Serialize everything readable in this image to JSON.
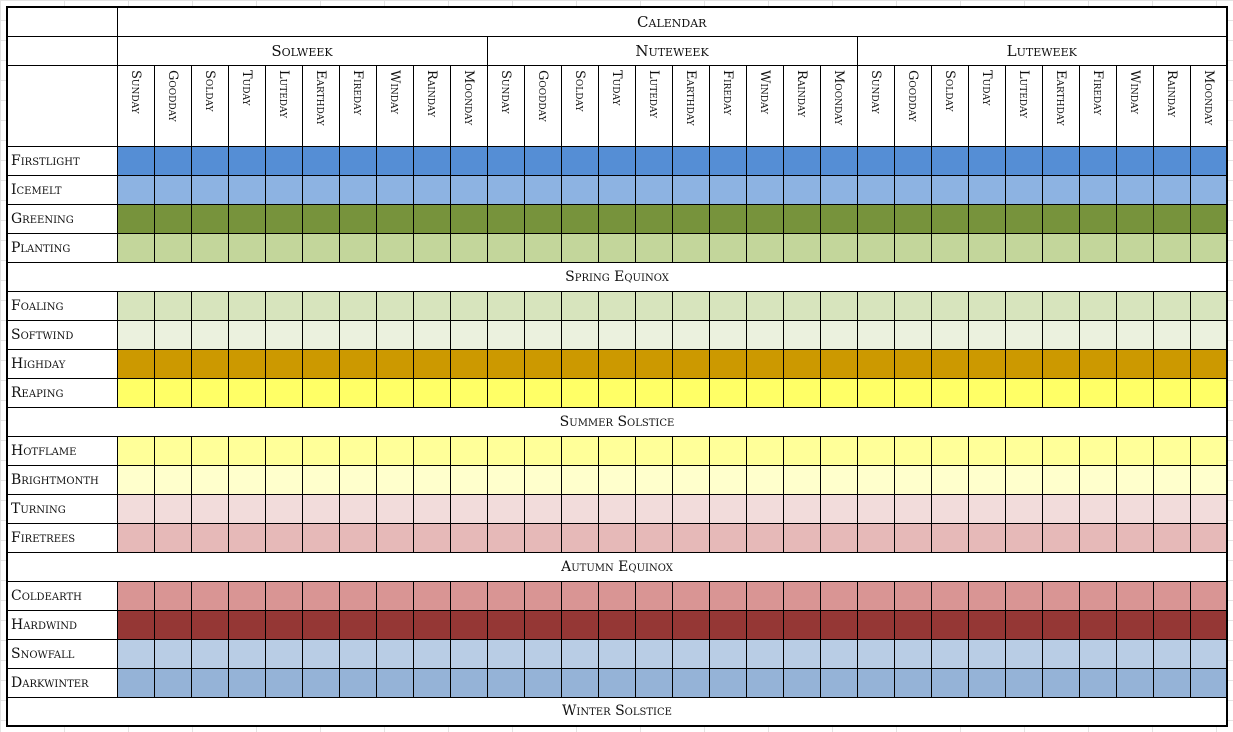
{
  "title": "Calendar",
  "weeks": [
    "Solweek",
    "Nuteweek",
    "Luteweek"
  ],
  "days": [
    "Sunday",
    "Goodday",
    "Solday",
    "Tuday",
    "Luteday",
    "Earthday",
    "Fireday",
    "Winday",
    "Rainday",
    "Moonday"
  ],
  "chart_data": {
    "type": "table",
    "title": "Calendar",
    "columns_per_week": 10,
    "groups": [
      {
        "months": [
          {
            "name": "Firstlight",
            "color": "#558ed5"
          },
          {
            "name": "Icemelt",
            "color": "#8db3e2"
          },
          {
            "name": "Greening",
            "color": "#77933c"
          },
          {
            "name": "Planting",
            "color": "#c3d69b"
          }
        ],
        "label": "Spring Equinox"
      },
      {
        "months": [
          {
            "name": "Foaling",
            "color": "#d7e4bd"
          },
          {
            "name": "Softwind",
            "color": "#ebf1de"
          },
          {
            "name": "Highday",
            "color": "#cc9900"
          },
          {
            "name": "Reaping",
            "color": "#ffff66"
          }
        ],
        "label": "Summer Solstice"
      },
      {
        "months": [
          {
            "name": "Hotflame",
            "color": "#ffff99"
          },
          {
            "name": "Brightmonth",
            "color": "#ffffcc"
          },
          {
            "name": "Turning",
            "color": "#f2dcdb"
          },
          {
            "name": "Firetrees",
            "color": "#e6b9b8"
          }
        ],
        "label": "Autumn Equinox"
      },
      {
        "months": [
          {
            "name": "Coldearth",
            "color": "#d99594"
          },
          {
            "name": "Hardwind",
            "color": "#953735"
          },
          {
            "name": "Snowfall",
            "color": "#b9cde5"
          },
          {
            "name": "Darkwinter",
            "color": "#95b3d7"
          }
        ],
        "label": "Winter Solstice"
      }
    ]
  }
}
